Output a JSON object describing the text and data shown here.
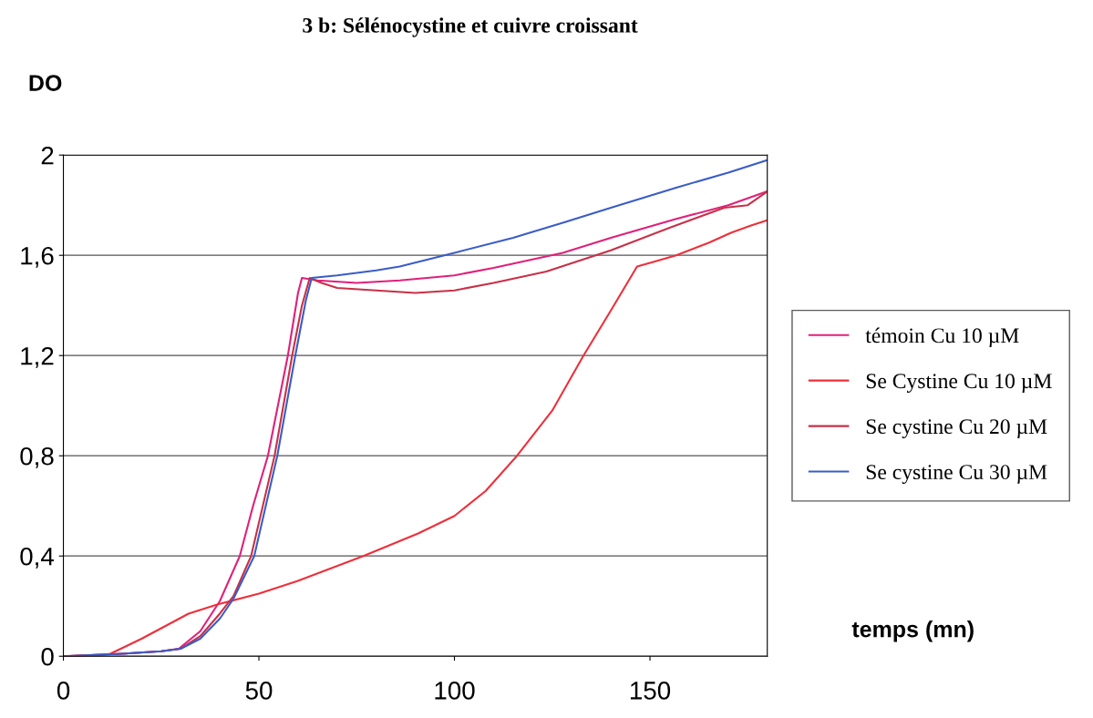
{
  "chart_data": {
    "type": "line",
    "title": "3 b: Sélénocystine et cuivre croissant",
    "xlabel": "temps (mn)",
    "ylabel": "DO",
    "xlim": [
      0,
      180
    ],
    "xticks": [
      0,
      50,
      100,
      150
    ],
    "ylim": [
      0,
      2
    ],
    "yticks": [
      {
        "value": 0,
        "label": "0"
      },
      {
        "value": 0.4,
        "label": "0,4"
      },
      {
        "value": 0.8,
        "label": "0,8"
      },
      {
        "value": 1.2,
        "label": "1,2"
      },
      {
        "value": 1.6,
        "label": "1,6"
      },
      {
        "value": 2,
        "label": "2"
      }
    ],
    "grid": "y",
    "legend": "right",
    "marker": "none",
    "line_style": "solid",
    "series": [
      {
        "name": "témoin Cu 10 µM",
        "color": "#e0207a",
        "x": [
          0,
          15,
          25,
          29.5,
          35,
          40,
          45.1,
          48.5,
          52.3,
          57.4,
          60,
          61,
          65,
          75,
          86,
          100,
          110,
          127.7,
          140,
          156.7,
          170,
          180
        ],
        "values": [
          0,
          0.01,
          0.02,
          0.03,
          0.1,
          0.22,
          0.4,
          0.6,
          0.8,
          1.2,
          1.45,
          1.51,
          1.5,
          1.49,
          1.5,
          1.52,
          1.55,
          1.61,
          1.67,
          1.745,
          1.8,
          1.855
        ]
      },
      {
        "name": "Se Cystine Cu 10 µM",
        "color": "#ee2f3a",
        "x": [
          0,
          8,
          12,
          20,
          26,
          32,
          39.5,
          50,
          59.8,
          76.7,
          90.7,
          100,
          108,
          116,
          125,
          133,
          140,
          146.7,
          150,
          156.7,
          165,
          170.7,
          176,
          180
        ],
        "values": [
          0,
          0,
          0.01,
          0.07,
          0.12,
          0.17,
          0.207,
          0.25,
          0.3,
          0.4,
          0.49,
          0.56,
          0.66,
          0.8,
          0.98,
          1.2,
          1.38,
          1.555,
          1.57,
          1.6,
          1.65,
          1.69,
          1.72,
          1.74
        ]
      },
      {
        "name": "Se cystine Cu 20 µM",
        "color": "#c83048",
        "x": [
          0,
          15,
          25,
          30,
          35,
          40,
          43.5,
          48,
          54,
          58.5,
          61,
          63,
          66,
          70,
          80,
          90,
          100,
          110,
          123.5,
          140,
          155,
          169,
          175,
          180
        ],
        "values": [
          0,
          0.01,
          0.02,
          0.03,
          0.08,
          0.17,
          0.24,
          0.4,
          0.8,
          1.2,
          1.4,
          1.51,
          1.49,
          1.47,
          1.46,
          1.45,
          1.46,
          1.49,
          1.535,
          1.62,
          1.71,
          1.79,
          1.8,
          1.855
        ]
      },
      {
        "name": "Se cystine Cu 30 µM",
        "color": "#3a5cc8",
        "x": [
          0,
          15,
          25,
          30,
          35,
          40,
          43.5,
          48.8,
          54.7,
          59.3,
          62,
          63.5,
          70,
          80,
          86,
          100,
          115,
          127.7,
          140,
          156.7,
          170,
          180
        ],
        "values": [
          0,
          0.01,
          0.02,
          0.03,
          0.07,
          0.15,
          0.23,
          0.4,
          0.8,
          1.2,
          1.42,
          1.51,
          1.52,
          1.54,
          1.555,
          1.61,
          1.67,
          1.73,
          1.79,
          1.87,
          1.93,
          1.98
        ]
      }
    ]
  }
}
